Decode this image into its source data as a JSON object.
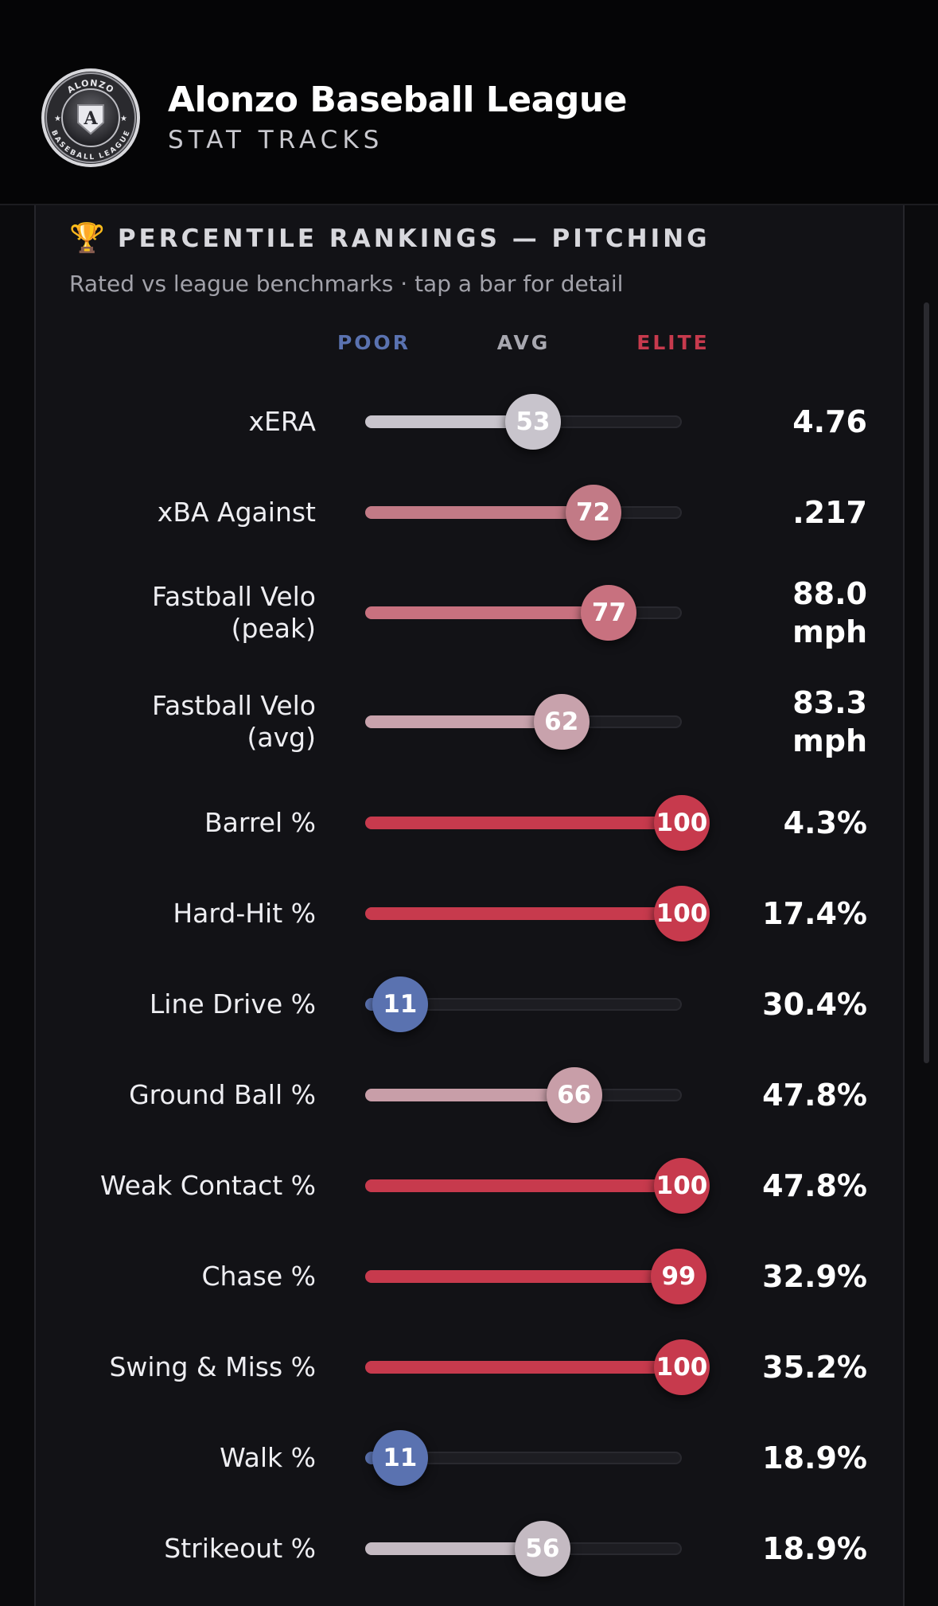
{
  "header": {
    "title": "Alonzo Baseball League",
    "subtitle": "STAT TRACKS",
    "logo": {
      "icon": "league-shield-logo",
      "ring_text_top": "ALONZO",
      "ring_text_bottom": "BASEBALL LEAGUE",
      "monogram": "A"
    }
  },
  "section": {
    "icon": "trophy-icon",
    "title": "PERCENTILE RANKINGS — PITCHING",
    "subtitle": "Rated vs league benchmarks · tap a bar for detail"
  },
  "legend": {
    "poor": "POOR",
    "avg": "AVG",
    "elite": "ELITE"
  },
  "colors": {
    "poor": "#5a72b0",
    "avg": "#b9b6be",
    "elite": "#c73a4d",
    "background": "#0b0b0d",
    "panel": "#121216"
  },
  "metrics": [
    {
      "label": [
        "xERA"
      ],
      "percentile": 53,
      "value": [
        "4.76"
      ],
      "color": "#c8c4cc"
    },
    {
      "label": [
        "xBA Against"
      ],
      "percentile": 72,
      "value": [
        ".217"
      ],
      "color": "#c27a86"
    },
    {
      "label": [
        "Fastball Velo",
        "(peak)"
      ],
      "percentile": 77,
      "value": [
        "88.0",
        "mph"
      ],
      "color": "#c8717f"
    },
    {
      "label": [
        "Fastball Velo",
        "(avg)"
      ],
      "percentile": 62,
      "value": [
        "83.3",
        "mph"
      ],
      "color": "#c8a2ac"
    },
    {
      "label": [
        "Barrel %"
      ],
      "percentile": 100,
      "value": [
        "4.3%"
      ],
      "color": "#c73a4d"
    },
    {
      "label": [
        "Hard-Hit %"
      ],
      "percentile": 100,
      "value": [
        "17.4%"
      ],
      "color": "#c73a4d"
    },
    {
      "label": [
        "Line Drive %"
      ],
      "percentile": 11,
      "value": [
        "30.4%"
      ],
      "color": "#5a72b0"
    },
    {
      "label": [
        "Ground Ball %"
      ],
      "percentile": 66,
      "value": [
        "47.8%"
      ],
      "color": "#c89ea8"
    },
    {
      "label": [
        "Weak Contact %"
      ],
      "percentile": 100,
      "value": [
        "47.8%"
      ],
      "color": "#c73a4d"
    },
    {
      "label": [
        "Chase %"
      ],
      "percentile": 99,
      "value": [
        "32.9%"
      ],
      "color": "#c73a4d"
    },
    {
      "label": [
        "Swing & Miss %"
      ],
      "percentile": 100,
      "value": [
        "35.2%"
      ],
      "color": "#c73a4d"
    },
    {
      "label": [
        "Walk %"
      ],
      "percentile": 11,
      "value": [
        "18.9%"
      ],
      "color": "#5a72b0"
    },
    {
      "label": [
        "Strikeout %"
      ],
      "percentile": 56,
      "value": [
        "18.9%"
      ],
      "color": "#c4bac2"
    }
  ]
}
